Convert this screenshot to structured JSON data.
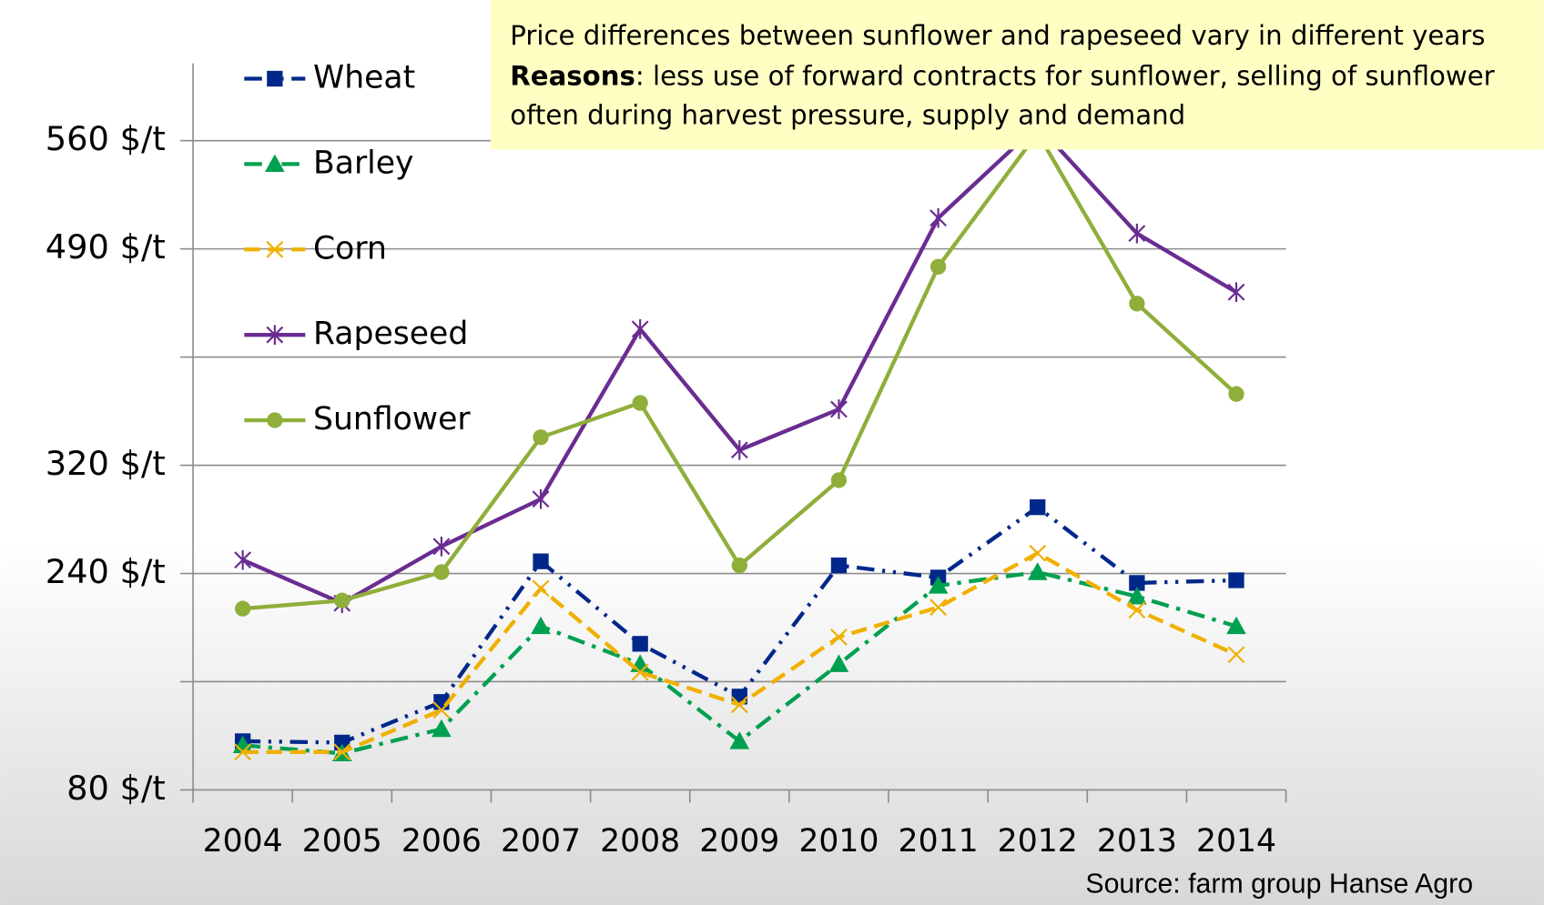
{
  "chart_data": {
    "type": "line",
    "categories": [
      "2004",
      "2005",
      "2006",
      "2007",
      "2008",
      "2009",
      "2010",
      "2011",
      "2012",
      "2013",
      "2014"
    ],
    "series": [
      {
        "name": "Wheat",
        "color": "#00288a",
        "marker": "square",
        "line_style": "dash-dot-dot",
        "values": [
          116,
          115,
          145,
          249,
          188,
          149,
          246,
          237,
          289,
          233,
          235
        ]
      },
      {
        "name": "Barley",
        "color": "#00a050",
        "marker": "triangle",
        "line_style": "dash-dot",
        "values": [
          113,
          107,
          125,
          201,
          173,
          116,
          173,
          231,
          241,
          223,
          201
        ]
      },
      {
        "name": "Corn",
        "color": "#f0b000",
        "marker": "x",
        "line_style": "dashed",
        "values": [
          108,
          108,
          139,
          229,
          167,
          143,
          193,
          215,
          255,
          213,
          180
        ]
      },
      {
        "name": "Rapeseed",
        "color": "#6a2c91",
        "marker": "star",
        "line_style": "solid",
        "values": [
          250,
          218,
          260,
          295,
          427,
          332,
          364,
          510,
          570,
          500,
          456
        ]
      },
      {
        "name": "Sunflower",
        "color": "#8fae3a",
        "marker": "circle",
        "line_style": "solid",
        "values": [
          214,
          220,
          241,
          342,
          369,
          246,
          309,
          476,
          565,
          447,
          376
        ]
      }
    ],
    "ylim": [
      80,
      610
    ],
    "yticks": [
      {
        "value": 80,
        "label": "80 $/t"
      },
      {
        "value": 160,
        "label": null
      },
      {
        "value": 240,
        "label": "240 $/t"
      },
      {
        "value": 320,
        "label": "320 $/t"
      },
      {
        "value": 405,
        "label": null
      },
      {
        "value": 490,
        "label": "490 $/t"
      },
      {
        "value": 560,
        "label": "560 $/t"
      }
    ],
    "grid": true,
    "legend": "upper left",
    "annotation": {
      "line1": "Price differences between sunflower and rapeseed vary in different years",
      "bold": "Reasons",
      "line2": ": less use of forward contracts for sunflower, selling of sunflower",
      "line3": "often during harvest pressure, supply and demand"
    },
    "source": "Source: farm group  Hanse Agro"
  }
}
